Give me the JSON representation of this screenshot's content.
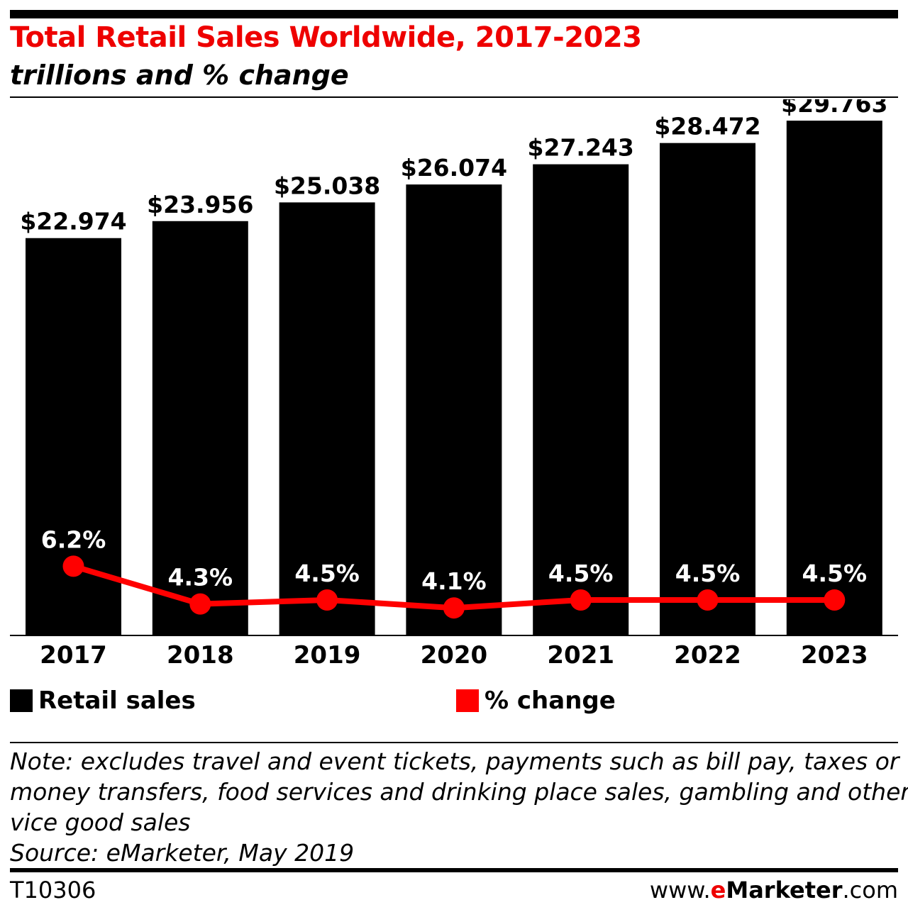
{
  "header": {
    "title": "Total Retail Sales Worldwide, 2017-2023",
    "subtitle": "trillions and % change"
  },
  "chart_data": {
    "type": "bar",
    "title": "Total Retail Sales Worldwide, 2017-2023",
    "subtitle": "trillions and % change",
    "categories": [
      "2017",
      "2018",
      "2019",
      "2020",
      "2021",
      "2022",
      "2023"
    ],
    "series": [
      {
        "name": "Retail sales",
        "type": "bar",
        "values": [
          22.974,
          23.956,
          25.038,
          26.074,
          27.243,
          28.472,
          29.763
        ],
        "labels": [
          "$22.974",
          "$23.956",
          "$25.038",
          "$26.074",
          "$27.243",
          "$28.472",
          "$29.763"
        ],
        "color": "#000000"
      },
      {
        "name": "% change",
        "type": "line",
        "values": [
          6.2,
          4.3,
          4.5,
          4.1,
          4.5,
          4.5,
          4.5
        ],
        "labels": [
          "6.2%",
          "4.3%",
          "4.5%",
          "4.1%",
          "4.5%",
          "4.5%",
          "4.5%"
        ],
        "color": "#ff0000"
      }
    ],
    "ylim": [
      0,
      31
    ],
    "grid": false,
    "legend_position": "bottom"
  },
  "legend": {
    "retail_label": "Retail sales",
    "change_label": "% change"
  },
  "notes": {
    "line1": "Note: excludes travel and event tickets, payments such as bill pay, taxes or",
    "line2": "money transfers, food services and drinking place sales, gambling and other",
    "line3": "vice good sales",
    "source": "Source: eMarketer, May 2019"
  },
  "footer": {
    "code": "T10306",
    "brand_prefix": "www.",
    "brand_e": "e",
    "brand_name": "Marketer",
    "brand_suffix": ".com"
  },
  "colors": {
    "title": "#ee0000",
    "bar": "#000000",
    "line": "#ff0000"
  }
}
